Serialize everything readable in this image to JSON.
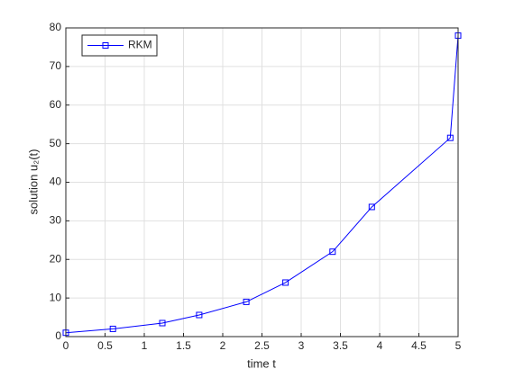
{
  "chart_data": {
    "type": "line",
    "xlabel": "time t",
    "ylabel": "solution u₂(t)",
    "x": [
      0,
      0.6,
      1.23,
      1.7,
      2.3,
      2.8,
      3.4,
      3.9,
      4.9,
      5
    ],
    "series": [
      {
        "name": "RKM",
        "color": "#0000ff",
        "marker": "square",
        "values": [
          1,
          2,
          3.5,
          5.6,
          9,
          14,
          22,
          33.6,
          51.5,
          78
        ]
      }
    ],
    "xlim": [
      0,
      5
    ],
    "xticks": [
      0,
      0.5,
      1,
      1.5,
      2,
      2.5,
      3,
      3.5,
      4,
      4.5,
      5
    ],
    "ylim": [
      0,
      80
    ],
    "yticks": [
      0,
      10,
      20,
      30,
      40,
      50,
      60,
      70,
      80
    ],
    "grid": true,
    "legend": "northwest"
  }
}
